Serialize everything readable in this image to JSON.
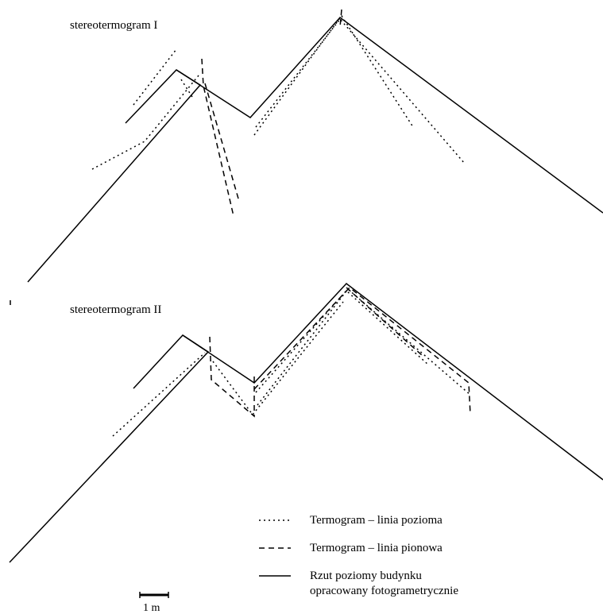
{
  "panels": [
    {
      "title": "stereotermogram I"
    },
    {
      "title": "stereotermogram II"
    }
  ],
  "legend": {
    "horizontal": "Termogram – linia pozioma",
    "vertical": "Termogram – linia pionowa",
    "outline_line1": "Rzut poziomy budynku",
    "outline_line2": "opracowany fotogrametrycznie"
  },
  "scale_bar": {
    "label": "1 m"
  }
}
